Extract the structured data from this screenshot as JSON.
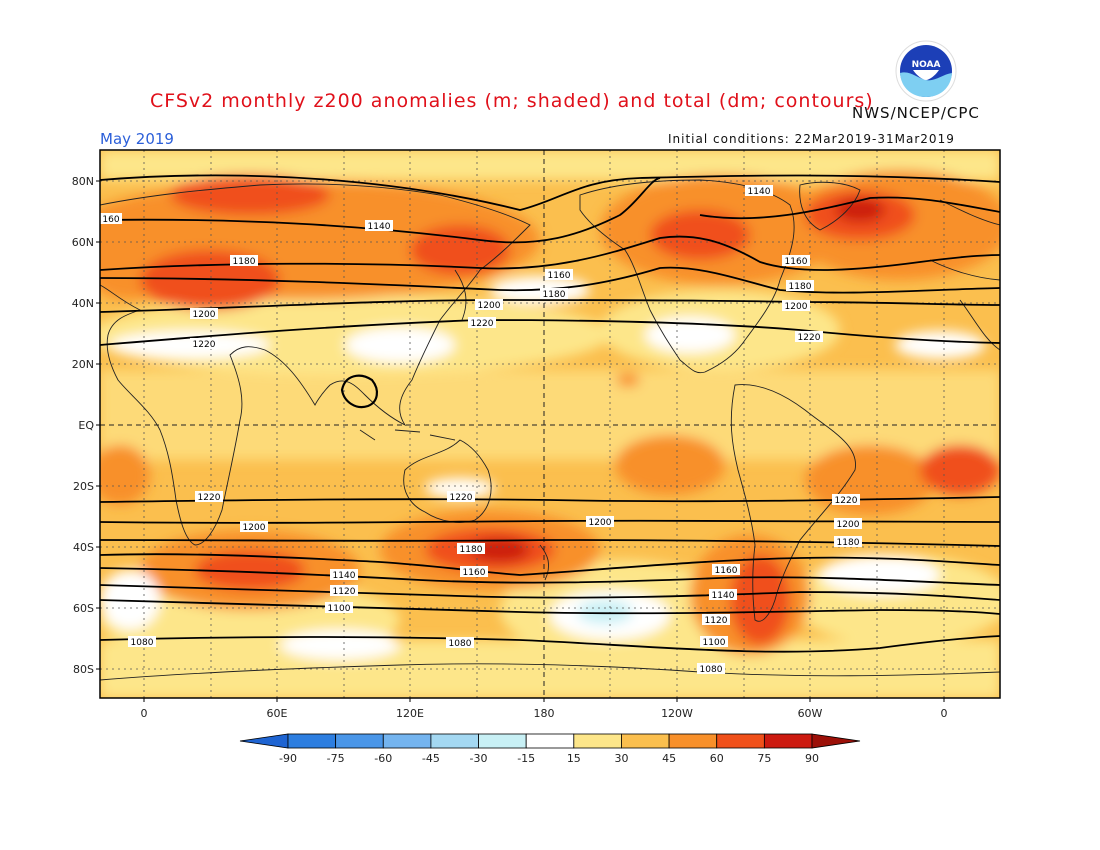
{
  "title": "CFSv2 monthly z200 anomalies (m; shaded) and total (dm; contours)",
  "agency": "NWS/NCEP/CPC",
  "logo_text": "NOAA",
  "month": "May 2019",
  "initial_conditions": "Initial conditions: 22Mar2019-31Mar2019",
  "lat_labels": [
    "80N",
    "60N",
    "40N",
    "20N",
    "EQ",
    "20S",
    "40S",
    "60S",
    "80S"
  ],
  "lon_labels": [
    "0",
    "60E",
    "120E",
    "180",
    "120W",
    "60W",
    "0"
  ],
  "colorbar": {
    "labels": [
      "-90",
      "-75",
      "-60",
      "-45",
      "-30",
      "-15",
      "15",
      "30",
      "45",
      "60",
      "75",
      "90"
    ],
    "colors": [
      "#1e64d2",
      "#2d7ee0",
      "#4a96e8",
      "#74b4ef",
      "#a4d8f2",
      "#c8f0f5",
      "#ffffff",
      "#fde68a",
      "#fbbf4e",
      "#f8902a",
      "#f0501a",
      "#cc1a10",
      "#9c1008"
    ]
  },
  "contour_labels": [
    "1140",
    "1160",
    "1180",
    "1200",
    "1220",
    "1120",
    "1100",
    "1080"
  ],
  "colors": {
    "title": "#e0101a",
    "month": "#2b5fd9"
  }
}
